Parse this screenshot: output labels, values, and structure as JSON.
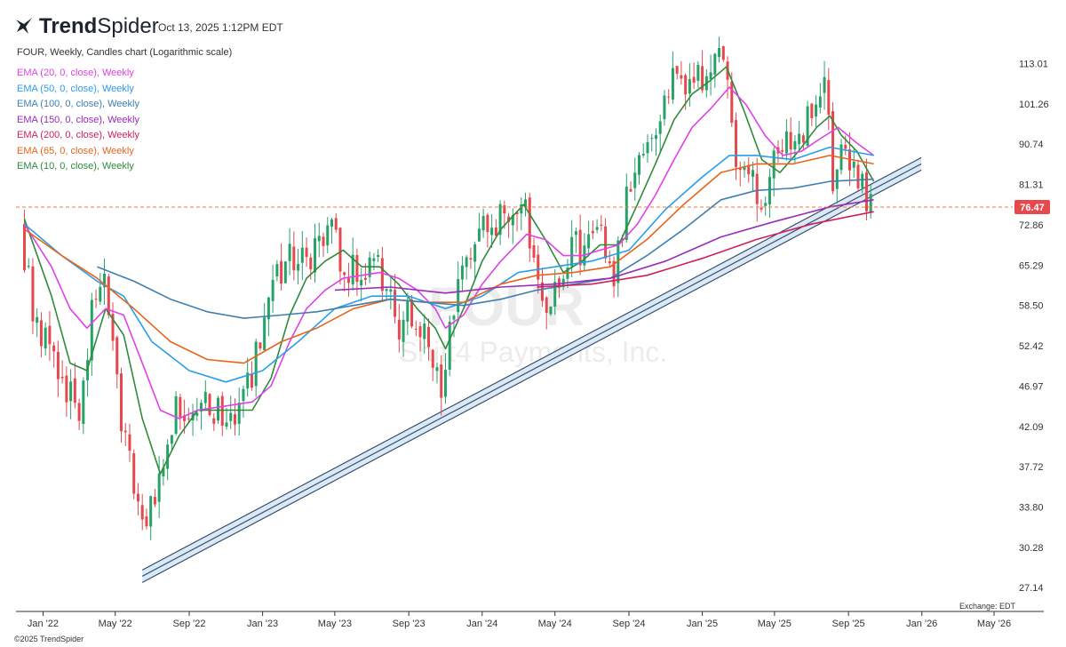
{
  "brand": {
    "name_bold": "Trend",
    "name_light": "Spider",
    "logo_icon": "trendspider-bird-icon"
  },
  "timestamp": "Oct 13, 2025 1:12PM EDT",
  "subtitle": "FOUR, Weekly, Candles chart (Logarithmic scale)",
  "watermark": {
    "ticker": "FOUR",
    "company": "Shift4 Payments, Inc."
  },
  "legend": [
    {
      "label": "EMA (20, 0, close), Weekly",
      "color": "#e040e8"
    },
    {
      "label": "EMA (50, 0, close), Weekly",
      "color": "#2a9de8"
    },
    {
      "label": "EMA (100, 0, close), Weekly",
      "color": "#3f7fb0"
    },
    {
      "label": "EMA (150, 0, close), Weekly",
      "color": "#9a2ab8"
    },
    {
      "label": "EMA (200, 0, close), Weekly",
      "color": "#d0205a"
    },
    {
      "label": "EMA (65, 0, close), Weekly",
      "color": "#e8641a"
    },
    {
      "label": "EMA (10, 0, close), Weekly",
      "color": "#2e8b3a"
    }
  ],
  "copyright": "©2025 TrendSpider",
  "exchange": "Exchange: EDT",
  "chart_data": {
    "type": "candlestick",
    "symbol": "FOUR",
    "scale": "log",
    "ylim": [
      25.5,
      128
    ],
    "y_ticks": [
      "113.01",
      "101.26",
      "90.74",
      "81.31",
      "72.86",
      "65.29",
      "58.50",
      "52.42",
      "46.97",
      "42.09",
      "37.72",
      "33.80",
      "30.28",
      "27.14"
    ],
    "x_ticks": [
      "Jan '22",
      "May '22",
      "Sep '22",
      "Jan '23",
      "May '23",
      "Sep '23",
      "Jan '24",
      "May '24",
      "Sep '24",
      "Jan '25",
      "May '25",
      "Sep '25",
      "Jan '26",
      "May '26"
    ],
    "last_price": "76.47",
    "colors": {
      "up": "#26a269",
      "down": "#e5484d",
      "price_line": "#f07a3a",
      "channel": "#2a4566",
      "channel_fill": "#dbe9f6"
    },
    "trendline_channel": [
      {
        "date": "2022-06-15",
        "value": 28.0
      },
      {
        "date": "2025-12-31",
        "value": 86.0
      }
    ],
    "price_anchors": [
      {
        "date": "2021-12-01",
        "value": 73.5
      },
      {
        "date": "2021-12-22",
        "value": 58.5
      },
      {
        "date": "2022-01-19",
        "value": 52.0
      },
      {
        "date": "2022-02-09",
        "value": 47.0
      },
      {
        "date": "2022-03-09",
        "value": 44.5
      },
      {
        "date": "2022-03-30",
        "value": 57.0
      },
      {
        "date": "2022-04-20",
        "value": 64.0
      },
      {
        "date": "2022-05-11",
        "value": 46.0
      },
      {
        "date": "2022-06-01",
        "value": 38.0
      },
      {
        "date": "2022-06-22",
        "value": 31.0
      },
      {
        "date": "2022-07-20",
        "value": 36.5
      },
      {
        "date": "2022-08-17",
        "value": 44.0
      },
      {
        "date": "2022-09-14",
        "value": 45.0
      },
      {
        "date": "2022-10-12",
        "value": 44.5
      },
      {
        "date": "2022-11-09",
        "value": 43.0
      },
      {
        "date": "2022-12-07",
        "value": 44.5
      },
      {
        "date": "2023-01-04",
        "value": 52.5
      },
      {
        "date": "2023-02-01",
        "value": 62.5
      },
      {
        "date": "2023-03-01",
        "value": 67.0
      },
      {
        "date": "2023-03-29",
        "value": 64.5
      },
      {
        "date": "2023-04-26",
        "value": 73.5
      },
      {
        "date": "2023-05-24",
        "value": 63.5
      },
      {
        "date": "2023-06-21",
        "value": 64.0
      },
      {
        "date": "2023-07-19",
        "value": 67.0
      },
      {
        "date": "2023-08-16",
        "value": 56.0
      },
      {
        "date": "2023-09-13",
        "value": 57.0
      },
      {
        "date": "2023-10-11",
        "value": 52.0
      },
      {
        "date": "2023-11-01",
        "value": 45.0
      },
      {
        "date": "2023-11-22",
        "value": 59.0
      },
      {
        "date": "2023-12-20",
        "value": 70.0
      },
      {
        "date": "2024-01-17",
        "value": 74.0
      },
      {
        "date": "2024-02-14",
        "value": 73.0
      },
      {
        "date": "2024-03-13",
        "value": 81.0
      },
      {
        "date": "2024-04-03",
        "value": 67.0
      },
      {
        "date": "2024-05-01",
        "value": 58.0
      },
      {
        "date": "2024-05-29",
        "value": 66.0
      },
      {
        "date": "2024-06-26",
        "value": 70.0
      },
      {
        "date": "2024-07-24",
        "value": 70.0
      },
      {
        "date": "2024-08-14",
        "value": 60.0
      },
      {
        "date": "2024-09-04",
        "value": 82.0
      },
      {
        "date": "2024-10-02",
        "value": 88.0
      },
      {
        "date": "2024-10-30",
        "value": 96.0
      },
      {
        "date": "2024-11-20",
        "value": 108.0
      },
      {
        "date": "2024-12-18",
        "value": 104.0
      },
      {
        "date": "2025-01-15",
        "value": 110.0
      },
      {
        "date": "2025-02-12",
        "value": 118.0
      },
      {
        "date": "2025-03-05",
        "value": 88.0
      },
      {
        "date": "2025-04-02",
        "value": 82.0
      },
      {
        "date": "2025-04-16",
        "value": 76.0
      },
      {
        "date": "2025-05-14",
        "value": 89.0
      },
      {
        "date": "2025-06-11",
        "value": 92.0
      },
      {
        "date": "2025-07-09",
        "value": 100.0
      },
      {
        "date": "2025-07-30",
        "value": 104.0
      },
      {
        "date": "2025-08-13",
        "value": 84.0
      },
      {
        "date": "2025-09-03",
        "value": 90.0
      },
      {
        "date": "2025-09-24",
        "value": 82.0
      },
      {
        "date": "2025-10-13",
        "value": 76.5
      }
    ],
    "ema_series": [
      {
        "name": "EMA (10, 0, close), Weekly",
        "color": "#2e8b3a",
        "points": [
          [
            "2021-12-01",
            74
          ],
          [
            "2022-01-15",
            60
          ],
          [
            "2022-02-15",
            50
          ],
          [
            "2022-03-15",
            49
          ],
          [
            "2022-04-15",
            58
          ],
          [
            "2022-05-15",
            54
          ],
          [
            "2022-06-15",
            43
          ],
          [
            "2022-07-15",
            37
          ],
          [
            "2022-08-15",
            41
          ],
          [
            "2022-09-15",
            44
          ],
          [
            "2022-11-01",
            44
          ],
          [
            "2022-12-15",
            44
          ],
          [
            "2023-01-15",
            48
          ],
          [
            "2023-02-15",
            57
          ],
          [
            "2023-03-15",
            63
          ],
          [
            "2023-04-15",
            66
          ],
          [
            "2023-05-15",
            68
          ],
          [
            "2023-06-15",
            65
          ],
          [
            "2023-07-15",
            65
          ],
          [
            "2023-08-15",
            62
          ],
          [
            "2023-09-15",
            58
          ],
          [
            "2023-10-15",
            55
          ],
          [
            "2023-11-01",
            52
          ],
          [
            "2023-12-01",
            58
          ],
          [
            "2024-01-01",
            66
          ],
          [
            "2024-02-01",
            72
          ],
          [
            "2024-03-10",
            77
          ],
          [
            "2024-04-15",
            70
          ],
          [
            "2024-05-15",
            64
          ],
          [
            "2024-06-15",
            66
          ],
          [
            "2024-07-15",
            69
          ],
          [
            "2024-08-15",
            69
          ],
          [
            "2024-09-15",
            77
          ],
          [
            "2024-10-15",
            86
          ],
          [
            "2024-11-15",
            97
          ],
          [
            "2024-12-15",
            104
          ],
          [
            "2025-01-15",
            108
          ],
          [
            "2025-02-10",
            112
          ],
          [
            "2025-03-10",
            100
          ],
          [
            "2025-04-10",
            87
          ],
          [
            "2025-05-10",
            84
          ],
          [
            "2025-06-10",
            89
          ],
          [
            "2025-07-10",
            95
          ],
          [
            "2025-08-01",
            98
          ],
          [
            "2025-08-20",
            93
          ],
          [
            "2025-09-15",
            89
          ],
          [
            "2025-10-13",
            82
          ]
        ]
      },
      {
        "name": "EMA (20, 0, close), Weekly",
        "color": "#e040e8",
        "points": [
          [
            "2021-12-01",
            73
          ],
          [
            "2022-01-15",
            65
          ],
          [
            "2022-02-15",
            58
          ],
          [
            "2022-03-15",
            55
          ],
          [
            "2022-04-15",
            58
          ],
          [
            "2022-05-15",
            57
          ],
          [
            "2022-06-15",
            50
          ],
          [
            "2022-07-15",
            44
          ],
          [
            "2022-08-15",
            43
          ],
          [
            "2022-09-15",
            44
          ],
          [
            "2022-11-01",
            44.5
          ],
          [
            "2022-12-15",
            45
          ],
          [
            "2023-01-15",
            47
          ],
          [
            "2023-02-15",
            53
          ],
          [
            "2023-03-15",
            58
          ],
          [
            "2023-04-15",
            61
          ],
          [
            "2023-05-15",
            63
          ],
          [
            "2023-06-15",
            63.5
          ],
          [
            "2023-07-15",
            64
          ],
          [
            "2023-08-15",
            63
          ],
          [
            "2023-09-15",
            61
          ],
          [
            "2023-10-15",
            58
          ],
          [
            "2023-11-01",
            55
          ],
          [
            "2023-12-01",
            57
          ],
          [
            "2024-01-01",
            62
          ],
          [
            "2024-02-01",
            66
          ],
          [
            "2024-03-15",
            71
          ],
          [
            "2024-04-15",
            70
          ],
          [
            "2024-05-15",
            67
          ],
          [
            "2024-06-15",
            67
          ],
          [
            "2024-07-15",
            68
          ],
          [
            "2024-08-15",
            69
          ],
          [
            "2024-09-15",
            73
          ],
          [
            "2024-10-15",
            79
          ],
          [
            "2024-11-15",
            87
          ],
          [
            "2024-12-15",
            95
          ],
          [
            "2025-01-15",
            100
          ],
          [
            "2025-02-15",
            106
          ],
          [
            "2025-03-15",
            101
          ],
          [
            "2025-04-15",
            93
          ],
          [
            "2025-05-15",
            88
          ],
          [
            "2025-06-15",
            89
          ],
          [
            "2025-07-15",
            92
          ],
          [
            "2025-08-15",
            95
          ],
          [
            "2025-09-15",
            91
          ],
          [
            "2025-10-13",
            88
          ]
        ]
      },
      {
        "name": "EMA (50, 0, close), Weekly",
        "color": "#2a9de8",
        "points": [
          [
            "2021-12-01",
            73
          ],
          [
            "2022-02-01",
            67
          ],
          [
            "2022-04-01",
            62.5
          ],
          [
            "2022-05-15",
            60
          ],
          [
            "2022-07-01",
            53
          ],
          [
            "2022-09-01",
            49
          ],
          [
            "2022-11-01",
            47.5
          ],
          [
            "2023-01-01",
            49
          ],
          [
            "2023-03-01",
            53
          ],
          [
            "2023-05-01",
            58
          ],
          [
            "2023-07-01",
            60
          ],
          [
            "2023-09-01",
            60
          ],
          [
            "2023-11-01",
            58
          ],
          [
            "2024-01-01",
            60
          ],
          [
            "2024-03-01",
            64
          ],
          [
            "2024-05-01",
            65
          ],
          [
            "2024-07-01",
            66
          ],
          [
            "2024-09-01",
            68
          ],
          [
            "2024-11-01",
            76
          ],
          [
            "2025-01-01",
            83
          ],
          [
            "2025-02-15",
            88
          ],
          [
            "2025-04-01",
            88
          ],
          [
            "2025-06-01",
            87
          ],
          [
            "2025-08-01",
            90
          ],
          [
            "2025-10-13",
            88
          ]
        ]
      },
      {
        "name": "EMA (65, 0, close), Weekly",
        "color": "#e8641a",
        "points": [
          [
            "2021-12-01",
            72
          ],
          [
            "2022-02-01",
            67
          ],
          [
            "2022-04-01",
            63
          ],
          [
            "2022-06-01",
            58
          ],
          [
            "2022-08-01",
            53
          ],
          [
            "2022-10-01",
            50.5
          ],
          [
            "2022-12-01",
            50
          ],
          [
            "2023-02-01",
            53
          ],
          [
            "2023-04-01",
            55
          ],
          [
            "2023-06-01",
            58
          ],
          [
            "2023-08-01",
            59.5
          ],
          [
            "2023-10-01",
            59
          ],
          [
            "2023-12-01",
            59
          ],
          [
            "2024-02-01",
            62
          ],
          [
            "2024-04-01",
            63.5
          ],
          [
            "2024-06-01",
            64
          ],
          [
            "2024-08-01",
            65
          ],
          [
            "2024-10-01",
            70
          ],
          [
            "2024-12-01",
            77
          ],
          [
            "2025-02-01",
            84
          ],
          [
            "2025-04-01",
            86
          ],
          [
            "2025-06-01",
            86
          ],
          [
            "2025-08-01",
            88
          ],
          [
            "2025-10-13",
            86
          ]
        ]
      },
      {
        "name": "EMA (100, 0, close), Weekly",
        "color": "#3f7fb0",
        "points": [
          [
            "2022-04-01",
            65
          ],
          [
            "2022-06-01",
            62.5
          ],
          [
            "2022-08-01",
            59.5
          ],
          [
            "2022-10-01",
            57.5
          ],
          [
            "2022-12-01",
            56.5
          ],
          [
            "2023-02-01",
            57
          ],
          [
            "2023-04-01",
            57.5
          ],
          [
            "2023-06-01",
            58.5
          ],
          [
            "2023-08-01",
            59.5
          ],
          [
            "2023-10-01",
            59
          ],
          [
            "2023-12-01",
            58.5
          ],
          [
            "2024-02-01",
            59.5
          ],
          [
            "2024-04-01",
            61
          ],
          [
            "2024-06-01",
            62
          ],
          [
            "2024-08-01",
            63
          ],
          [
            "2024-10-01",
            67
          ],
          [
            "2024-12-01",
            72
          ],
          [
            "2025-02-01",
            78
          ],
          [
            "2025-04-01",
            80
          ],
          [
            "2025-06-01",
            80.5
          ],
          [
            "2025-08-01",
            82
          ],
          [
            "2025-10-13",
            82.5
          ]
        ]
      },
      {
        "name": "EMA (150, 0, close), Weekly",
        "color": "#9a2ab8",
        "points": [
          [
            "2023-05-01",
            61
          ],
          [
            "2023-08-01",
            61.5
          ],
          [
            "2023-11-01",
            60.5
          ],
          [
            "2024-02-01",
            61.5
          ],
          [
            "2024-05-01",
            62
          ],
          [
            "2024-08-01",
            63
          ],
          [
            "2024-11-01",
            66
          ],
          [
            "2025-02-01",
            70.5
          ],
          [
            "2025-05-01",
            73.5
          ],
          [
            "2025-08-01",
            76.5
          ],
          [
            "2025-10-13",
            78
          ]
        ]
      },
      {
        "name": "EMA (200, 0, close), Weekly",
        "color": "#d0205a",
        "points": [
          [
            "2024-04-01",
            61.5
          ],
          [
            "2024-07-01",
            62
          ],
          [
            "2024-10-01",
            63.5
          ],
          [
            "2025-01-01",
            66.5
          ],
          [
            "2025-04-01",
            70
          ],
          [
            "2025-07-01",
            73
          ],
          [
            "2025-10-13",
            75.5
          ]
        ]
      }
    ]
  }
}
